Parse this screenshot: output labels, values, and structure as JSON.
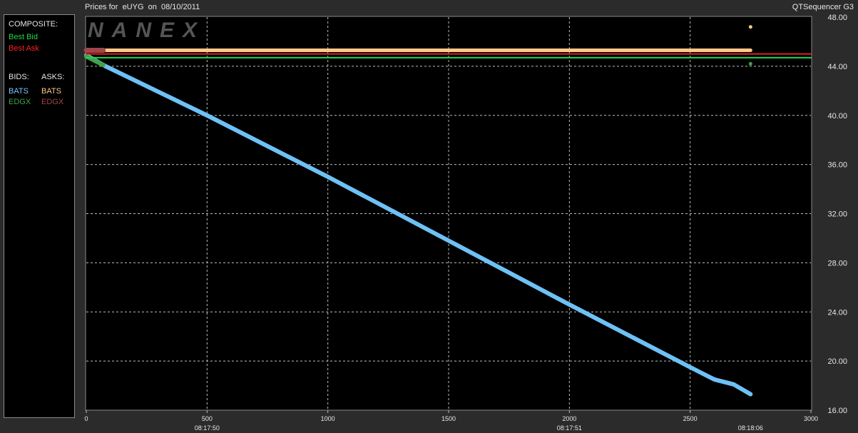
{
  "header": {
    "title": "Prices for  eUYG  on  08/10/2011",
    "brand": "QTSequencer G3",
    "watermark": "NANEX"
  },
  "legend": {
    "composite_heading": "COMPOSITE:",
    "composite": [
      {
        "label": "Best Bid",
        "color": "#21d64a"
      },
      {
        "label": "Best Ask",
        "color": "#ff2020"
      }
    ],
    "bids_heading": "BIDS:",
    "asks_heading": "ASKS:",
    "bids": [
      {
        "label": "BATS",
        "color": "#7cc4ff"
      },
      {
        "label": "EDGX",
        "color": "#3fa34d"
      }
    ],
    "asks": [
      {
        "label": "BATS",
        "color": "#ffc98a"
      },
      {
        "label": "EDGX",
        "color": "#a0454a"
      }
    ]
  },
  "chart_data": {
    "type": "line",
    "title": "Prices for  eUYG  on  08/10/2011",
    "xlim": [
      0,
      3000
    ],
    "ylim": [
      16,
      48
    ],
    "x_ticks": [
      0,
      500,
      1000,
      1500,
      2000,
      2500,
      3000
    ],
    "x_tick_labels": [
      "0",
      "500",
      "1000",
      "1500",
      "2000",
      "2500",
      "3000"
    ],
    "time_labels": [
      {
        "x": 500,
        "label": "08:17:50"
      },
      {
        "x": 2000,
        "label": "08:17:51"
      },
      {
        "x": 2750,
        "label": "08:18:06"
      }
    ],
    "y_ticks": [
      16,
      20,
      24,
      28,
      32,
      36,
      40,
      44,
      48
    ],
    "y_tick_labels": [
      "16.00",
      "20.00",
      "24.00",
      "28.00",
      "32.00",
      "36.00",
      "40.00",
      "44.00",
      "48.00"
    ],
    "grid": true,
    "series": [
      {
        "name": "BATS",
        "side": "bid",
        "color": "#6ec1f5",
        "x": [
          0,
          80,
          500,
          1000,
          1500,
          2000,
          2500,
          2600,
          2680,
          2750
        ],
        "y": [
          44.9,
          44.0,
          40.0,
          35.0,
          29.8,
          24.6,
          19.5,
          18.5,
          18.1,
          17.3
        ]
      },
      {
        "name": "EDGX",
        "side": "bid",
        "color": "#3fa34d",
        "x": [
          0,
          70
        ],
        "y": [
          44.8,
          44.1
        ]
      },
      {
        "name": "BATS",
        "side": "ask",
        "color": "#ffc98a",
        "x": [
          0,
          2750
        ],
        "y": [
          45.3,
          45.3
        ]
      },
      {
        "name": "EDGX",
        "side": "ask",
        "color": "#a0454a",
        "x": [
          0,
          70
        ],
        "y": [
          45.3,
          45.3
        ]
      },
      {
        "name": "Best Bid",
        "side": "composite",
        "color": "#21d64a",
        "x": [
          0,
          3000
        ],
        "y": [
          44.7,
          44.7
        ]
      },
      {
        "name": "Best Ask",
        "side": "composite",
        "color": "#e02020",
        "x": [
          0,
          3000
        ],
        "y": [
          45.0,
          45.0
        ]
      }
    ],
    "points": [
      {
        "x": 2750,
        "y": 47.2,
        "color": "#ffc98a"
      },
      {
        "x": 2750,
        "y": 44.2,
        "color": "#3fa34d"
      }
    ]
  }
}
